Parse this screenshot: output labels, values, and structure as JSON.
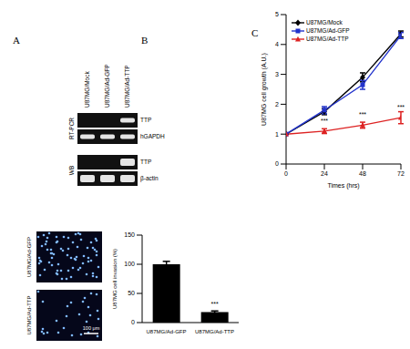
{
  "panels": [
    "A",
    "B",
    "C"
  ],
  "gel": {
    "lanes": [
      "U87MG/Mock",
      "U87MG/Ad-GFP",
      "U87MG/Ad-TTP"
    ],
    "sections": [
      {
        "name": "RT-PCR",
        "rows": [
          {
            "label": "TTP",
            "bands": [
              false,
              false,
              true
            ]
          },
          {
            "label": "hGAPDH",
            "bands": [
              true,
              true,
              true
            ]
          }
        ]
      },
      {
        "name": "WB",
        "rows": [
          {
            "label": "TTP",
            "bands": [
              false,
              false,
              true
            ]
          },
          {
            "label": "β-actin",
            "bands": [
              true,
              true,
              true
            ]
          }
        ]
      }
    ]
  },
  "images": {
    "rows": [
      {
        "label": "U87MG/Ad-GFP"
      },
      {
        "label": "U87MG/Ad-TTP"
      }
    ],
    "scale_bar": "100 μm"
  },
  "chart_data": [
    {
      "type": "line",
      "x_label": "Times (hrs)",
      "y_label": "U87MG cell growth (A.U.)",
      "x": [
        0,
        24,
        48,
        72
      ],
      "xlim": [
        0,
        72
      ],
      "xticks": [
        0,
        24,
        48,
        72
      ],
      "ylim": [
        0,
        5
      ],
      "yticks": [
        0,
        1,
        2,
        3,
        4,
        5
      ],
      "legend": "upper left",
      "series": [
        {
          "name": "U87MG/Mock",
          "color": "#000000",
          "marker": "diamond",
          "values": [
            1,
            1.75,
            2.9,
            4.35
          ],
          "errors": [
            0,
            0.1,
            0.15,
            0.1
          ]
        },
        {
          "name": "U87MG/Ad-GFP",
          "color": "#2233cc",
          "marker": "square",
          "values": [
            1,
            1.8,
            2.65,
            4.3
          ],
          "errors": [
            0,
            0.12,
            0.15,
            0.1
          ]
        },
        {
          "name": "U87MG/Ad-TTP",
          "color": "#dd2222",
          "marker": "triangle",
          "values": [
            1,
            1.1,
            1.3,
            1.55
          ],
          "errors": [
            0,
            0.08,
            0.1,
            0.2
          ]
        }
      ],
      "annotations": [
        {
          "series": "U87MG/Ad-TTP",
          "x": 24,
          "text": "***"
        },
        {
          "series": "U87MG/Ad-TTP",
          "x": 48,
          "text": "***"
        },
        {
          "series": "U87MG/Ad-TTP",
          "x": 72,
          "text": "***"
        }
      ]
    },
    {
      "type": "bar",
      "y_label": "U87MG cell invasion (%)",
      "categories": [
        "U87MG/Ad-GFP",
        "U87MG/Ad-TTP"
      ],
      "values": [
        100,
        18
      ],
      "errors": [
        5,
        2
      ],
      "color": "#000000",
      "ylim": [
        0,
        150
      ],
      "yticks": [
        0,
        50,
        100,
        150
      ],
      "annotations": [
        {
          "category": "U87MG/Ad-TTP",
          "text": "***"
        }
      ]
    }
  ]
}
